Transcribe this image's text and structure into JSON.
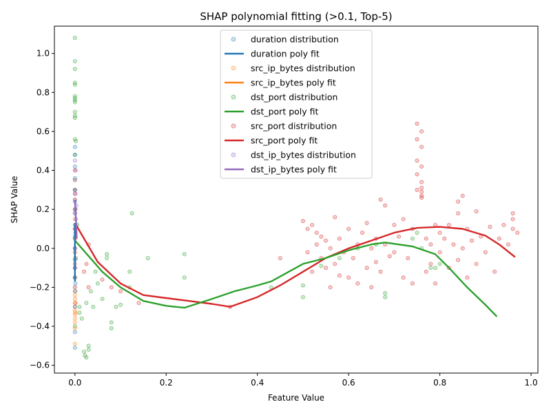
{
  "chart_data": {
    "type": "scatter",
    "title": "SHAP polynomial fitting (>0.1, Top-5)",
    "xlabel": "Feature Value",
    "ylabel": "SHAP Value",
    "xlim": [
      -0.045,
      1.015
    ],
    "ylim": [
      -0.64,
      1.14
    ],
    "xticks": [
      "0.0",
      "0.2",
      "0.4",
      "0.6",
      "0.8",
      "1.0"
    ],
    "xtick_values": [
      0.0,
      0.2,
      0.4,
      0.6,
      0.8,
      1.0
    ],
    "yticks": [
      "−0.6",
      "−0.4",
      "−0.2",
      "0.0",
      "0.2",
      "0.4",
      "0.6",
      "0.8",
      "1.0"
    ],
    "ytick_values": [
      -0.6,
      -0.4,
      -0.2,
      0.0,
      0.2,
      0.4,
      0.6,
      0.8,
      1.0
    ],
    "grid": false,
    "legend_position": "top-center",
    "legend": [
      {
        "label": "duration distribution",
        "kind": "marker",
        "color": "#1f77b4"
      },
      {
        "label": "duration poly fit",
        "kind": "line",
        "color": "#1f77b4"
      },
      {
        "label": "src_ip_bytes distribution",
        "kind": "marker",
        "color": "#ff7f0e"
      },
      {
        "label": "src_ip_bytes poly fit",
        "kind": "line",
        "color": "#ff7f0e"
      },
      {
        "label": "dst_port distribution",
        "kind": "marker",
        "color": "#2ca02c"
      },
      {
        "label": "dst_port poly fit",
        "kind": "line",
        "color": "#2ca02c"
      },
      {
        "label": "src_port distribution",
        "kind": "marker",
        "color": "#d62728"
      },
      {
        "label": "src_port poly fit",
        "kind": "line",
        "color": "#d62728"
      },
      {
        "label": "dst_ip_bytes distribution",
        "kind": "marker",
        "color": "#9467bd"
      },
      {
        "label": "dst_ip_bytes poly fit",
        "kind": "line",
        "color": "#9467bd"
      }
    ],
    "series": [
      {
        "name": "src_port",
        "color": "#d62728",
        "points": [
          [
            0.0,
            0.28
          ],
          [
            0.0,
            0.2
          ],
          [
            0.0,
            0.1
          ],
          [
            0.0,
            0.05
          ],
          [
            0.0,
            -0.02
          ],
          [
            0.0,
            -0.08
          ],
          [
            0.0,
            -0.15
          ],
          [
            0.001,
            0.4
          ],
          [
            0.001,
            -0.28
          ],
          [
            0.02,
            -0.12
          ],
          [
            0.025,
            -0.08
          ],
          [
            0.03,
            -0.2
          ],
          [
            0.03,
            0.02
          ],
          [
            0.06,
            -0.16
          ],
          [
            0.08,
            -0.2
          ],
          [
            0.1,
            -0.22
          ],
          [
            0.14,
            -0.28
          ],
          [
            0.34,
            -0.3
          ],
          [
            0.45,
            -0.05
          ],
          [
            0.5,
            0.14
          ],
          [
            0.51,
            0.1
          ],
          [
            0.51,
            -0.02
          ],
          [
            0.52,
            0.12
          ],
          [
            0.52,
            -0.12
          ],
          [
            0.53,
            0.08
          ],
          [
            0.53,
            0.02
          ],
          [
            0.54,
            0.06
          ],
          [
            0.54,
            -0.05
          ],
          [
            0.55,
            -0.1
          ],
          [
            0.55,
            0.04
          ],
          [
            0.56,
            -0.2
          ],
          [
            0.56,
            0.0
          ],
          [
            0.57,
            0.16
          ],
          [
            0.57,
            -0.08
          ],
          [
            0.58,
            -0.14
          ],
          [
            0.58,
            0.05
          ],
          [
            0.59,
            -0.02
          ],
          [
            0.6,
            0.1
          ],
          [
            0.6,
            -0.15
          ],
          [
            0.61,
            -0.05
          ],
          [
            0.62,
            0.02
          ],
          [
            0.62,
            -0.18
          ],
          [
            0.63,
            0.08
          ],
          [
            0.64,
            -0.1
          ],
          [
            0.64,
            0.13
          ],
          [
            0.65,
            -0.2
          ],
          [
            0.65,
            0.0
          ],
          [
            0.66,
            0.05
          ],
          [
            0.66,
            -0.07
          ],
          [
            0.67,
            0.25
          ],
          [
            0.67,
            -0.12
          ],
          [
            0.68,
            0.22
          ],
          [
            0.68,
            0.02
          ],
          [
            0.69,
            -0.04
          ],
          [
            0.7,
            0.12
          ],
          [
            0.7,
            -0.02
          ],
          [
            0.71,
            0.06
          ],
          [
            0.72,
            -0.15
          ],
          [
            0.72,
            0.15
          ],
          [
            0.73,
            -0.05
          ],
          [
            0.74,
            0.1
          ],
          [
            0.74,
            -0.18
          ],
          [
            0.75,
            0.64
          ],
          [
            0.75,
            0.56
          ],
          [
            0.75,
            0.45
          ],
          [
            0.75,
            0.38
          ],
          [
            0.75,
            0.3
          ],
          [
            0.76,
            0.6
          ],
          [
            0.76,
            0.52
          ],
          [
            0.76,
            0.42
          ],
          [
            0.76,
            0.34
          ],
          [
            0.76,
            0.31
          ],
          [
            0.76,
            0.29
          ],
          [
            0.76,
            0.27
          ],
          [
            0.76,
            0.26
          ],
          [
            0.77,
            0.05
          ],
          [
            0.77,
            -0.12
          ],
          [
            0.78,
            0.02
          ],
          [
            0.78,
            -0.08
          ],
          [
            0.79,
            0.12
          ],
          [
            0.79,
            -0.18
          ],
          [
            0.8,
            0.08
          ],
          [
            0.8,
            -0.02
          ],
          [
            0.81,
            0.05
          ],
          [
            0.82,
            -0.1
          ],
          [
            0.82,
            0.12
          ],
          [
            0.83,
            0.02
          ],
          [
            0.84,
            0.24
          ],
          [
            0.84,
            0.18
          ],
          [
            0.84,
            -0.06
          ],
          [
            0.85,
            0.27
          ],
          [
            0.85,
            0.0
          ],
          [
            0.86,
            0.1
          ],
          [
            0.86,
            -0.15
          ],
          [
            0.87,
            0.04
          ],
          [
            0.88,
            0.19
          ],
          [
            0.88,
            -0.08
          ],
          [
            0.89,
            0.06
          ],
          [
            0.9,
            -0.02
          ],
          [
            0.91,
            0.11
          ],
          [
            0.92,
            -0.12
          ],
          [
            0.93,
            0.05
          ],
          [
            0.94,
            0.12
          ],
          [
            0.95,
            0.02
          ],
          [
            0.96,
            0.18
          ],
          [
            0.96,
            0.15
          ],
          [
            0.96,
            0.1
          ],
          [
            0.97,
            0.08
          ]
        ],
        "fit": [
          [
            0.0,
            0.13
          ],
          [
            0.05,
            -0.07
          ],
          [
            0.1,
            -0.18
          ],
          [
            0.15,
            -0.24
          ],
          [
            0.2,
            -0.255
          ],
          [
            0.25,
            -0.27
          ],
          [
            0.3,
            -0.285
          ],
          [
            0.34,
            -0.3
          ],
          [
            0.4,
            -0.25
          ],
          [
            0.45,
            -0.19
          ],
          [
            0.5,
            -0.12
          ],
          [
            0.55,
            -0.05
          ],
          [
            0.6,
            0.0
          ],
          [
            0.65,
            0.04
          ],
          [
            0.7,
            0.08
          ],
          [
            0.75,
            0.105
          ],
          [
            0.8,
            0.11
          ],
          [
            0.85,
            0.1
          ],
          [
            0.9,
            0.065
          ],
          [
            0.93,
            0.02
          ],
          [
            0.965,
            -0.045
          ]
        ]
      },
      {
        "name": "dst_port",
        "color": "#2ca02c",
        "points": [
          [
            0.0,
            1.08
          ],
          [
            0.0,
            0.96
          ],
          [
            0.0,
            0.92
          ],
          [
            0.0,
            0.85
          ],
          [
            0.0,
            0.84
          ],
          [
            0.0,
            0.78
          ],
          [
            0.0,
            0.77
          ],
          [
            0.0,
            0.76
          ],
          [
            0.0,
            0.75
          ],
          [
            0.0,
            0.7
          ],
          [
            0.0,
            0.68
          ],
          [
            0.0,
            0.67
          ],
          [
            0.0,
            0.56
          ],
          [
            0.0,
            0.48
          ],
          [
            0.0,
            0.3
          ],
          [
            0.0,
            -0.4
          ],
          [
            0.002,
            0.55
          ],
          [
            0.005,
            0.12
          ],
          [
            0.01,
            -0.3
          ],
          [
            0.01,
            -0.33
          ],
          [
            0.015,
            -0.36
          ],
          [
            0.02,
            -0.53
          ],
          [
            0.022,
            -0.55
          ],
          [
            0.025,
            -0.56
          ],
          [
            0.03,
            -0.52
          ],
          [
            0.03,
            -0.5
          ],
          [
            0.025,
            -0.28
          ],
          [
            0.035,
            -0.22
          ],
          [
            0.04,
            -0.3
          ],
          [
            0.045,
            -0.12
          ],
          [
            0.05,
            -0.18
          ],
          [
            0.06,
            -0.26
          ],
          [
            0.07,
            -0.03
          ],
          [
            0.07,
            -0.05
          ],
          [
            0.08,
            -0.38
          ],
          [
            0.08,
            -0.41
          ],
          [
            0.09,
            -0.3
          ],
          [
            0.1,
            -0.29
          ],
          [
            0.12,
            -0.12
          ],
          [
            0.12,
            -0.2
          ],
          [
            0.125,
            0.18
          ],
          [
            0.16,
            -0.05
          ],
          [
            0.24,
            -0.03
          ],
          [
            0.24,
            -0.15
          ],
          [
            0.43,
            -0.2
          ],
          [
            0.5,
            -0.25
          ],
          [
            0.5,
            -0.19
          ],
          [
            0.54,
            -0.09
          ],
          [
            0.58,
            -0.05
          ],
          [
            0.62,
            0.0
          ],
          [
            0.66,
            0.02
          ],
          [
            0.68,
            -0.23
          ],
          [
            0.68,
            -0.25
          ],
          [
            0.74,
            0.05
          ],
          [
            0.75,
            0.08
          ],
          [
            0.76,
            0.0
          ],
          [
            0.78,
            -0.1
          ],
          [
            0.79,
            -0.1
          ],
          [
            0.8,
            -0.08
          ]
        ],
        "fit": [
          [
            0.0,
            0.04
          ],
          [
            0.03,
            -0.04
          ],
          [
            0.06,
            -0.12
          ],
          [
            0.1,
            -0.2
          ],
          [
            0.15,
            -0.27
          ],
          [
            0.2,
            -0.295
          ],
          [
            0.24,
            -0.305
          ],
          [
            0.3,
            -0.26
          ],
          [
            0.35,
            -0.22
          ],
          [
            0.4,
            -0.19
          ],
          [
            0.43,
            -0.17
          ],
          [
            0.5,
            -0.08
          ],
          [
            0.55,
            -0.05
          ],
          [
            0.6,
            -0.01
          ],
          [
            0.65,
            0.02
          ],
          [
            0.68,
            0.03
          ],
          [
            0.74,
            0.01
          ],
          [
            0.79,
            -0.03
          ],
          [
            0.82,
            -0.1
          ],
          [
            0.86,
            -0.2
          ],
          [
            0.9,
            -0.29
          ],
          [
            0.925,
            -0.35
          ]
        ]
      },
      {
        "name": "src_ip_bytes",
        "color": "#ff7f0e",
        "points": [
          [
            0.0,
            -0.49
          ],
          [
            0.0,
            -0.41
          ],
          [
            0.0,
            -0.38
          ],
          [
            0.0,
            -0.36
          ],
          [
            0.0,
            -0.34
          ],
          [
            0.0,
            -0.32
          ],
          [
            0.0,
            -0.3
          ],
          [
            0.0,
            -0.28
          ],
          [
            0.0,
            -0.26
          ],
          [
            0.0,
            -0.24
          ],
          [
            0.0,
            -0.2
          ],
          [
            0.0,
            -0.15
          ],
          [
            0.0,
            -0.1
          ],
          [
            0.0,
            -0.05
          ],
          [
            0.0,
            0.0
          ],
          [
            0.0,
            0.05
          ],
          [
            0.0,
            0.1
          ],
          [
            0.0,
            0.15
          ],
          [
            0.0,
            0.2
          ],
          [
            0.0,
            0.25
          ],
          [
            0.0,
            0.3
          ],
          [
            0.0,
            0.35
          ],
          [
            0.001,
            -0.33
          ],
          [
            0.001,
            -0.22
          ],
          [
            0.002,
            0.12
          ]
        ],
        "fit": []
      },
      {
        "name": "duration",
        "color": "#1f77b4",
        "points": [
          [
            0.0,
            -0.51
          ],
          [
            0.0,
            -0.43
          ],
          [
            0.0,
            -0.3
          ],
          [
            0.0,
            -0.22
          ],
          [
            0.0,
            -0.15
          ],
          [
            0.0,
            -0.1
          ],
          [
            0.0,
            -0.06
          ],
          [
            0.0,
            0.0
          ],
          [
            0.0,
            0.06
          ],
          [
            0.0,
            0.12
          ],
          [
            0.0,
            0.18
          ],
          [
            0.0,
            0.24
          ],
          [
            0.0,
            0.3
          ],
          [
            0.0,
            0.36
          ],
          [
            0.0,
            0.42
          ],
          [
            0.0,
            0.48
          ],
          [
            0.0,
            0.52
          ],
          [
            0.001,
            -0.18
          ],
          [
            0.001,
            0.2
          ],
          [
            0.002,
            -0.05
          ]
        ],
        "fit": [
          [
            0.0,
            0.13
          ],
          [
            0.0,
            -0.17
          ]
        ]
      },
      {
        "name": "dst_ip_bytes",
        "color": "#9467bd",
        "points": [
          [
            0.0,
            -0.2
          ],
          [
            0.0,
            -0.1
          ],
          [
            0.0,
            0.0
          ],
          [
            0.0,
            0.1
          ],
          [
            0.0,
            0.18
          ],
          [
            0.0,
            0.25
          ],
          [
            0.0,
            0.3
          ],
          [
            0.0,
            0.35
          ],
          [
            0.0,
            0.4
          ],
          [
            0.0,
            0.45
          ],
          [
            0.001,
            0.28
          ],
          [
            0.001,
            0.08
          ],
          [
            0.002,
            0.15
          ],
          [
            0.003,
            0.22
          ]
        ],
        "fit": [
          [
            0.0,
            0.25
          ],
          [
            0.004,
            0.05
          ]
        ]
      }
    ]
  }
}
